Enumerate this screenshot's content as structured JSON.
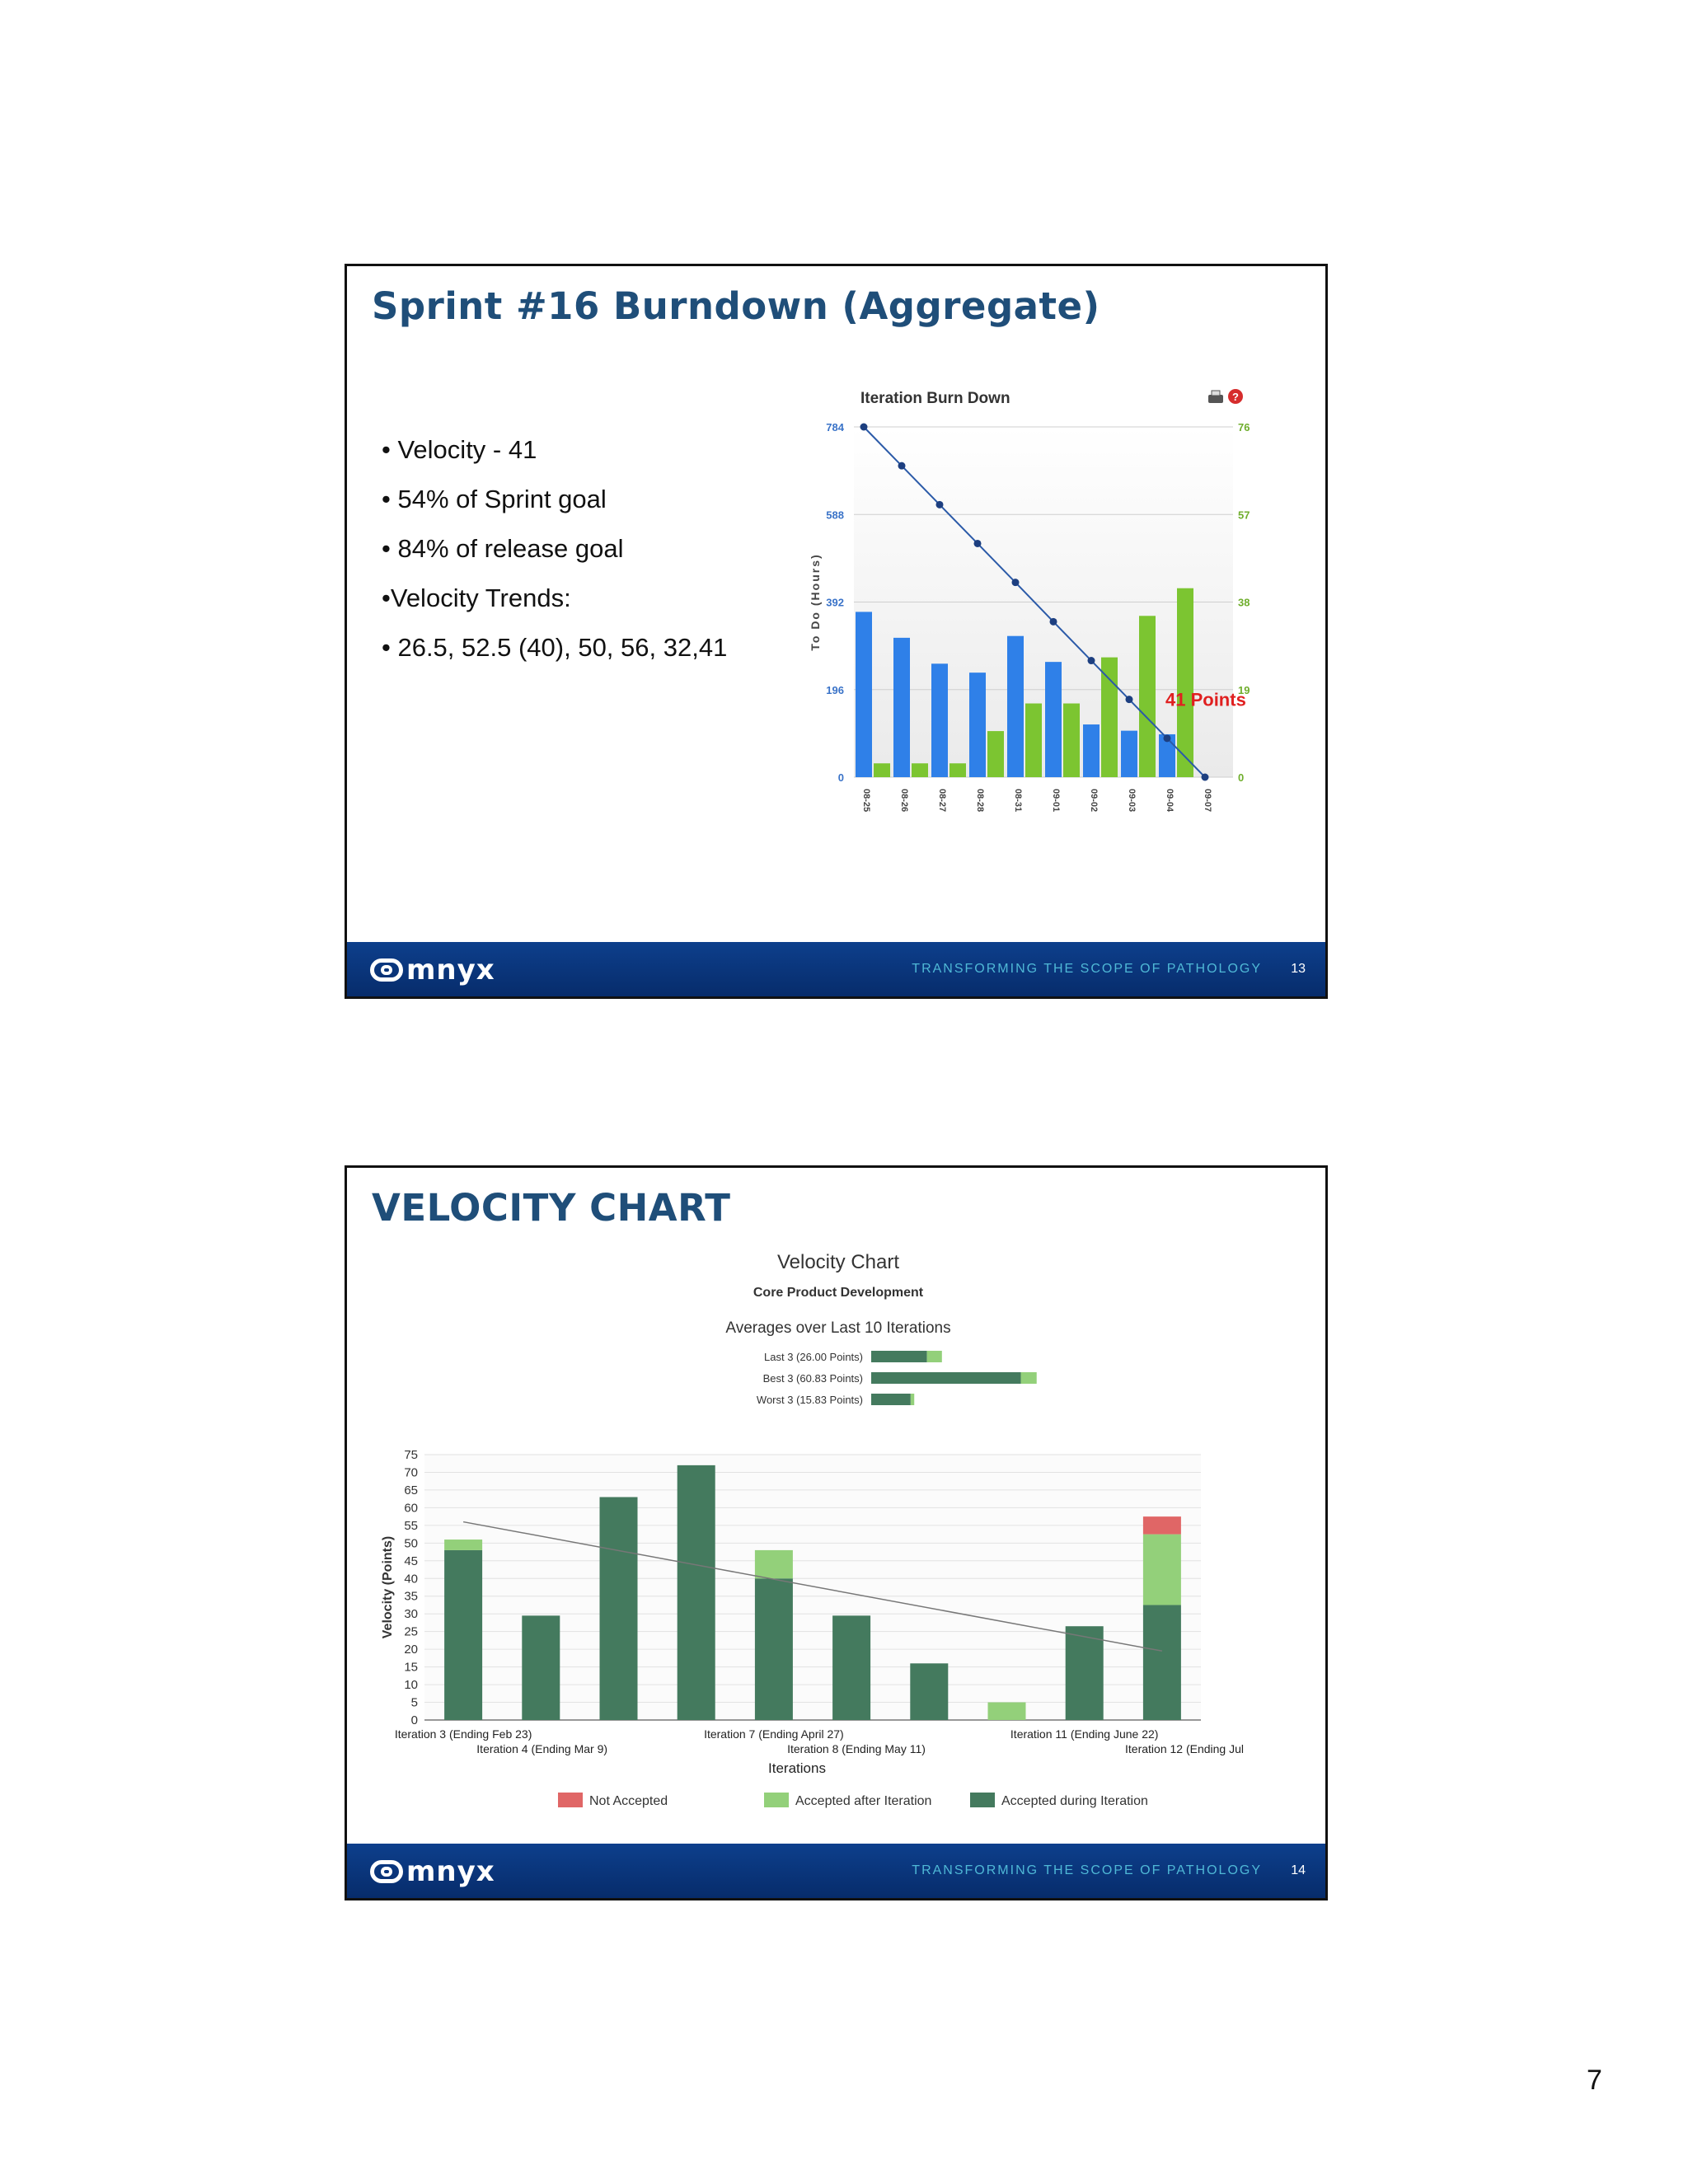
{
  "slide1": {
    "title": "Sprint #16 Burndown (Aggregate)",
    "bullets": [
      "• Velocity - 41",
      "•  54% of Sprint goal",
      "•  84% of release goal",
      "•Velocity Trends:",
      "• 26.5, 52.5 (40), 50, 56, 32,41"
    ],
    "tagline": "TRANSFORMING THE SCOPE OF PATHOLOGY",
    "number": "13",
    "logo_text": "mnyx"
  },
  "slide2": {
    "title": "VELOCITY CHART",
    "tagline": "TRANSFORMING THE SCOPE OF PATHOLOGY",
    "number": "14",
    "logo_text": "mnyx"
  },
  "page_number": "7",
  "colors": {
    "title_blue": "#1f4e79",
    "bar_blue": "#2f80e8",
    "bar_green": "#7cc531",
    "not_accepted": "#e06666",
    "accepted_after": "#93d07a",
    "accepted_during": "#447a5e"
  },
  "chart_data": [
    {
      "type": "bar",
      "title": "Iteration Burn Down",
      "ylabel": "To Do (Hours)",
      "categories": [
        "08-25",
        "08-26",
        "08-27",
        "08-28",
        "08-31",
        "09-01",
        "09-02",
        "09-03",
        "09-04",
        "09-07"
      ],
      "series": [
        {
          "values": [
            370,
            312,
            254,
            234,
            316,
            258,
            118,
            104,
            96,
            null
          ],
          "axis": "left",
          "color": "#2f80e8"
        },
        {
          "values": [
            3,
            3,
            3,
            10,
            16,
            16,
            26,
            35,
            41,
            null
          ],
          "axis": "right",
          "color": "#7cc531"
        },
        {
          "type": "line",
          "values": [
            784,
            697,
            610,
            523,
            436,
            348,
            261,
            174,
            87,
            0
          ],
          "axis": "left",
          "color": "#2b5aa8"
        }
      ],
      "ylim": [
        0,
        784
      ],
      "yticks": [
        0,
        196,
        392,
        588,
        784
      ],
      "y2lim": [
        0,
        76
      ],
      "y2ticks": [
        0,
        19,
        38,
        57,
        76
      ],
      "annotation": "41 Points",
      "icons": [
        "print-icon",
        "help-icon"
      ],
      "grid": true
    },
    {
      "type": "bar",
      "title": "Velocity Chart",
      "subtitle": "Core Product Development",
      "averages_title": "Averages over Last 10 Iterations",
      "averages": [
        {
          "label": "Last 3 (26.00 Points)",
          "during": 20.5,
          "after": 5.5
        },
        {
          "label": "Best 3 (60.83 Points)",
          "during": 55,
          "after": 5.83
        },
        {
          "label": "Worst 3 (15.83 Points)",
          "during": 14.5,
          "after": 1.33
        }
      ],
      "xlabel": "Iterations",
      "ylabel": "Velocity (Points)",
      "ylim": [
        0,
        75
      ],
      "yticks": [
        0,
        5,
        10,
        15,
        20,
        25,
        30,
        35,
        40,
        45,
        50,
        55,
        60,
        65,
        70,
        75
      ],
      "categories": [
        "Iteration 3 (Ending Feb 23)",
        "Iteration 4 (Ending Mar 9)",
        "",
        "",
        "Iteration 7 (Ending April 27)",
        "Iteration 8 (Ending May 11)",
        "",
        "",
        "Iteration 11 (Ending June 22)",
        "Iteration 12 (Ending Jul"
      ],
      "series": [
        {
          "name": "Not Accepted",
          "values": [
            0,
            0,
            0,
            0,
            0,
            0,
            0,
            0,
            0,
            5
          ],
          "color": "#e06666"
        },
        {
          "name": "Accepted after Iteration",
          "values": [
            3,
            0,
            0,
            0,
            8,
            0,
            0,
            5,
            0,
            20
          ],
          "color": "#93d07a"
        },
        {
          "name": "Accepted during Iteration",
          "values": [
            48,
            29.5,
            63,
            72,
            40,
            29.5,
            16,
            0,
            26.5,
            32.5
          ],
          "color": "#447a5e"
        }
      ],
      "trend": [
        56,
        19.5
      ],
      "legend": "bottom",
      "grid": true
    }
  ]
}
